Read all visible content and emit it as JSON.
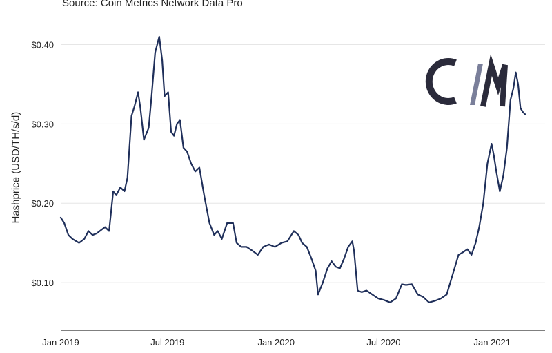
{
  "header": {
    "source": "Source: Coin Metrics Network Data Pro"
  },
  "logo": {
    "text": "C/M",
    "color": "#2b2b3b",
    "slash_color": "#7a7f9a"
  },
  "colors": {
    "line": "#1f2f5a",
    "grid": "#e6e6e6",
    "axis": "#333333"
  },
  "chart_data": {
    "type": "line",
    "title": "",
    "xlabel": "",
    "ylabel": "Hashprice (USD/TH/s/d)",
    "xlim": [
      "2019-01-01",
      "2021-03-20"
    ],
    "ylim": [
      0.04,
      0.43
    ],
    "grid": "horizontal",
    "y_ticks": [
      0.1,
      0.2,
      0.3,
      0.4
    ],
    "y_tick_labels": [
      "$0.10",
      "$0.20",
      "$0.30",
      "$0.40"
    ],
    "x_ticks": [
      "2019-01-01",
      "2019-07-01",
      "2020-01-01",
      "2020-07-01",
      "2021-01-01"
    ],
    "x_tick_labels": [
      "Jan 2019",
      "Jul 2019",
      "Jan 2020",
      "Jul 2020",
      "Jan 2021"
    ],
    "series": [
      {
        "x": [
          "2019-01-01",
          "2019-01-07",
          "2019-01-14",
          "2019-01-21",
          "2019-02-01",
          "2019-02-10",
          "2019-02-17",
          "2019-02-24",
          "2019-03-03",
          "2019-03-10",
          "2019-03-17",
          "2019-03-24",
          "2019-03-31",
          "2019-04-05",
          "2019-04-12",
          "2019-04-19",
          "2019-04-24",
          "2019-05-01",
          "2019-05-06",
          "2019-05-12",
          "2019-05-16",
          "2019-05-22",
          "2019-05-30",
          "2019-06-04",
          "2019-06-10",
          "2019-06-17",
          "2019-06-22",
          "2019-06-26",
          "2019-07-02",
          "2019-07-07",
          "2019-07-12",
          "2019-07-17",
          "2019-07-22",
          "2019-07-28",
          "2019-08-03",
          "2019-08-10",
          "2019-08-17",
          "2019-08-24",
          "2019-09-01",
          "2019-09-10",
          "2019-09-18",
          "2019-09-24",
          "2019-10-01",
          "2019-10-10",
          "2019-10-20",
          "2019-10-26",
          "2019-11-03",
          "2019-11-12",
          "2019-11-22",
          "2019-12-01",
          "2019-12-10",
          "2019-12-20",
          "2019-12-30",
          "2020-01-10",
          "2020-01-20",
          "2020-01-31",
          "2020-02-08",
          "2020-02-14",
          "2020-02-22",
          "2020-03-01",
          "2020-03-08",
          "2020-03-12",
          "2020-03-20",
          "2020-03-28",
          "2020-04-04",
          "2020-04-11",
          "2020-04-18",
          "2020-04-25",
          "2020-05-02",
          "2020-05-09",
          "2020-05-12",
          "2020-05-18",
          "2020-05-25",
          "2020-06-02",
          "2020-06-12",
          "2020-06-22",
          "2020-07-02",
          "2020-07-12",
          "2020-07-22",
          "2020-08-01",
          "2020-08-08",
          "2020-08-18",
          "2020-08-28",
          "2020-09-06",
          "2020-09-16",
          "2020-09-26",
          "2020-10-06",
          "2020-10-16",
          "2020-10-26",
          "2020-11-05",
          "2020-11-12",
          "2020-11-20",
          "2020-11-27",
          "2020-12-04",
          "2020-12-10",
          "2020-12-17",
          "2020-12-24",
          "2020-12-31",
          "2021-01-04",
          "2021-01-08",
          "2021-01-14",
          "2021-01-20",
          "2021-01-26",
          "2021-02-01",
          "2021-02-06",
          "2021-02-10",
          "2021-02-14",
          "2021-02-18",
          "2021-02-22",
          "2021-02-26"
        ],
        "values": [
          0.182,
          0.175,
          0.16,
          0.155,
          0.15,
          0.155,
          0.165,
          0.16,
          0.162,
          0.166,
          0.17,
          0.165,
          0.215,
          0.21,
          0.22,
          0.215,
          0.232,
          0.31,
          0.322,
          0.34,
          0.32,
          0.28,
          0.295,
          0.335,
          0.39,
          0.41,
          0.38,
          0.335,
          0.34,
          0.29,
          0.285,
          0.3,
          0.305,
          0.27,
          0.265,
          0.25,
          0.24,
          0.245,
          0.21,
          0.175,
          0.16,
          0.165,
          0.155,
          0.175,
          0.175,
          0.15,
          0.145,
          0.145,
          0.14,
          0.135,
          0.145,
          0.148,
          0.145,
          0.15,
          0.152,
          0.165,
          0.16,
          0.15,
          0.145,
          0.13,
          0.115,
          0.085,
          0.1,
          0.118,
          0.127,
          0.12,
          0.118,
          0.13,
          0.145,
          0.152,
          0.14,
          0.09,
          0.088,
          0.09,
          0.085,
          0.08,
          0.078,
          0.075,
          0.08,
          0.098,
          0.097,
          0.098,
          0.085,
          0.082,
          0.075,
          0.077,
          0.08,
          0.085,
          0.11,
          0.135,
          0.138,
          0.142,
          0.135,
          0.15,
          0.17,
          0.2,
          0.25,
          0.275,
          0.26,
          0.24,
          0.215,
          0.235,
          0.27,
          0.33,
          0.345,
          0.365,
          0.35,
          0.32,
          0.315,
          0.312
        ]
      }
    ]
  }
}
